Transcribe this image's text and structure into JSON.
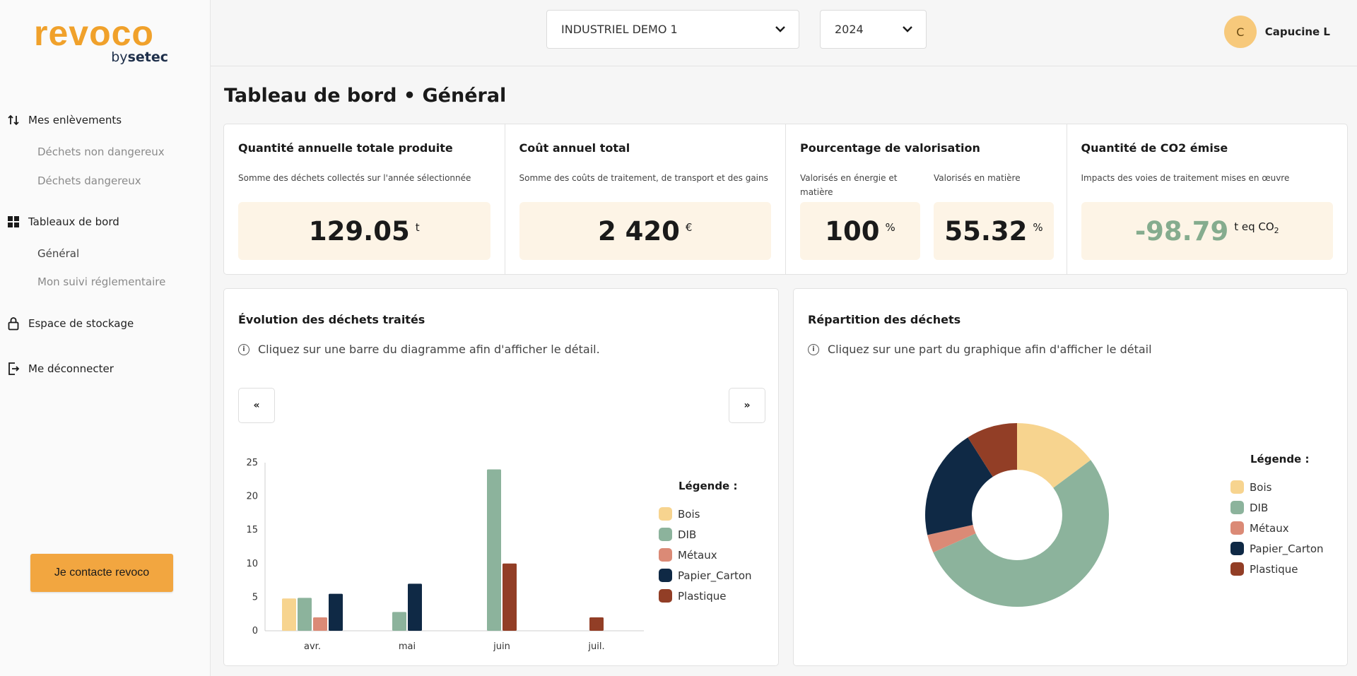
{
  "brand": {
    "name": "revoco",
    "sub_prefix": "by",
    "sub_brand": "setec"
  },
  "sidebar": {
    "sections": [
      {
        "label": "Mes enlèvements",
        "icon": "sort-arrows-icon"
      },
      {
        "label": "Tableaux de bord",
        "icon": "dashboard-grid-icon"
      },
      {
        "label": "Espace de stockage",
        "icon": "lock-icon"
      },
      {
        "label": "Me déconnecter",
        "icon": "logout-icon"
      }
    ],
    "sub_items": [
      {
        "label": "Déchets non dangereux"
      },
      {
        "label": "Déchets dangereux"
      },
      {
        "label": "Général"
      },
      {
        "label": "Mon suivi réglementaire"
      }
    ],
    "contact_label": "Je contacte revoco"
  },
  "header": {
    "site_select": "INDUSTRIEL DEMO 1",
    "year_select": "2024",
    "user_initial": "C",
    "user_name": "Capucine L"
  },
  "page": {
    "title": "Tableau de bord • Général"
  },
  "kpis": {
    "quantity": {
      "title": "Quantité annuelle totale produite",
      "desc": "Somme des déchets collectés sur l'année sélectionnée",
      "value": "129.05",
      "unit": "t"
    },
    "cost": {
      "title": "Coût annuel total",
      "desc": "Somme des coûts de traitement, de transport et des gains",
      "value": "2 420",
      "unit": "€"
    },
    "valorisation": {
      "title": "Pourcentage de valorisation",
      "energy_desc": "Valorisés en énergie et matière",
      "energy_value": "100",
      "material_desc": "Valorisés en matière",
      "material_value": "55.32",
      "unit": "%"
    },
    "co2": {
      "title": "Quantité de CO2 émise",
      "desc": "Impacts des voies de traitement mises en œuvre",
      "value": "-98.79",
      "unit": "t eq CO",
      "unit_sub": "2",
      "value_color": "#85ac8e"
    }
  },
  "bar_panel": {
    "title": "Évolution des déchets traités",
    "hint": "Cliquez sur une barre du diagramme afin d'afficher le détail.",
    "prev_label": "«",
    "next_label": "»",
    "legend_title": "Légende :"
  },
  "pie_panel": {
    "title": "Répartition des déchets",
    "hint": "Cliquez sur une part du graphique afin d'afficher le détail",
    "legend_title": "Légende :"
  },
  "chart_data": [
    {
      "type": "bar",
      "categories": [
        "avr.",
        "mai",
        "juin",
        "juil."
      ],
      "ylim": [
        0,
        25
      ],
      "yticks": [
        0,
        5,
        10,
        15,
        20,
        25
      ],
      "grid": false,
      "legend_position": "right",
      "series": [
        {
          "name": "Bois",
          "color": "#f7d48f",
          "values": [
            4.8,
            0,
            0,
            0
          ]
        },
        {
          "name": "DIB",
          "color": "#8cb39c",
          "values": [
            4.9,
            2.8,
            24,
            0
          ]
        },
        {
          "name": "Métaux",
          "color": "#db8a76",
          "values": [
            2.0,
            0,
            0,
            0
          ]
        },
        {
          "name": "Papier_Carton",
          "color": "#0f2945",
          "values": [
            5.5,
            7.0,
            0,
            0
          ]
        },
        {
          "name": "Plastique",
          "color": "#923e26",
          "values": [
            0,
            0,
            10,
            2.0
          ]
        }
      ]
    },
    {
      "type": "pie",
      "donut": true,
      "legend_position": "right",
      "slices": [
        {
          "name": "Bois",
          "color": "#f7d48f",
          "value": 14.8
        },
        {
          "name": "DIB",
          "color": "#8cb39c",
          "value": 53.5
        },
        {
          "name": "Métaux",
          "color": "#db8a76",
          "value": 3.2
        },
        {
          "name": "Papier_Carton",
          "color": "#0f2945",
          "value": 19.5
        },
        {
          "name": "Plastique",
          "color": "#923e26",
          "value": 9.0
        }
      ]
    }
  ]
}
